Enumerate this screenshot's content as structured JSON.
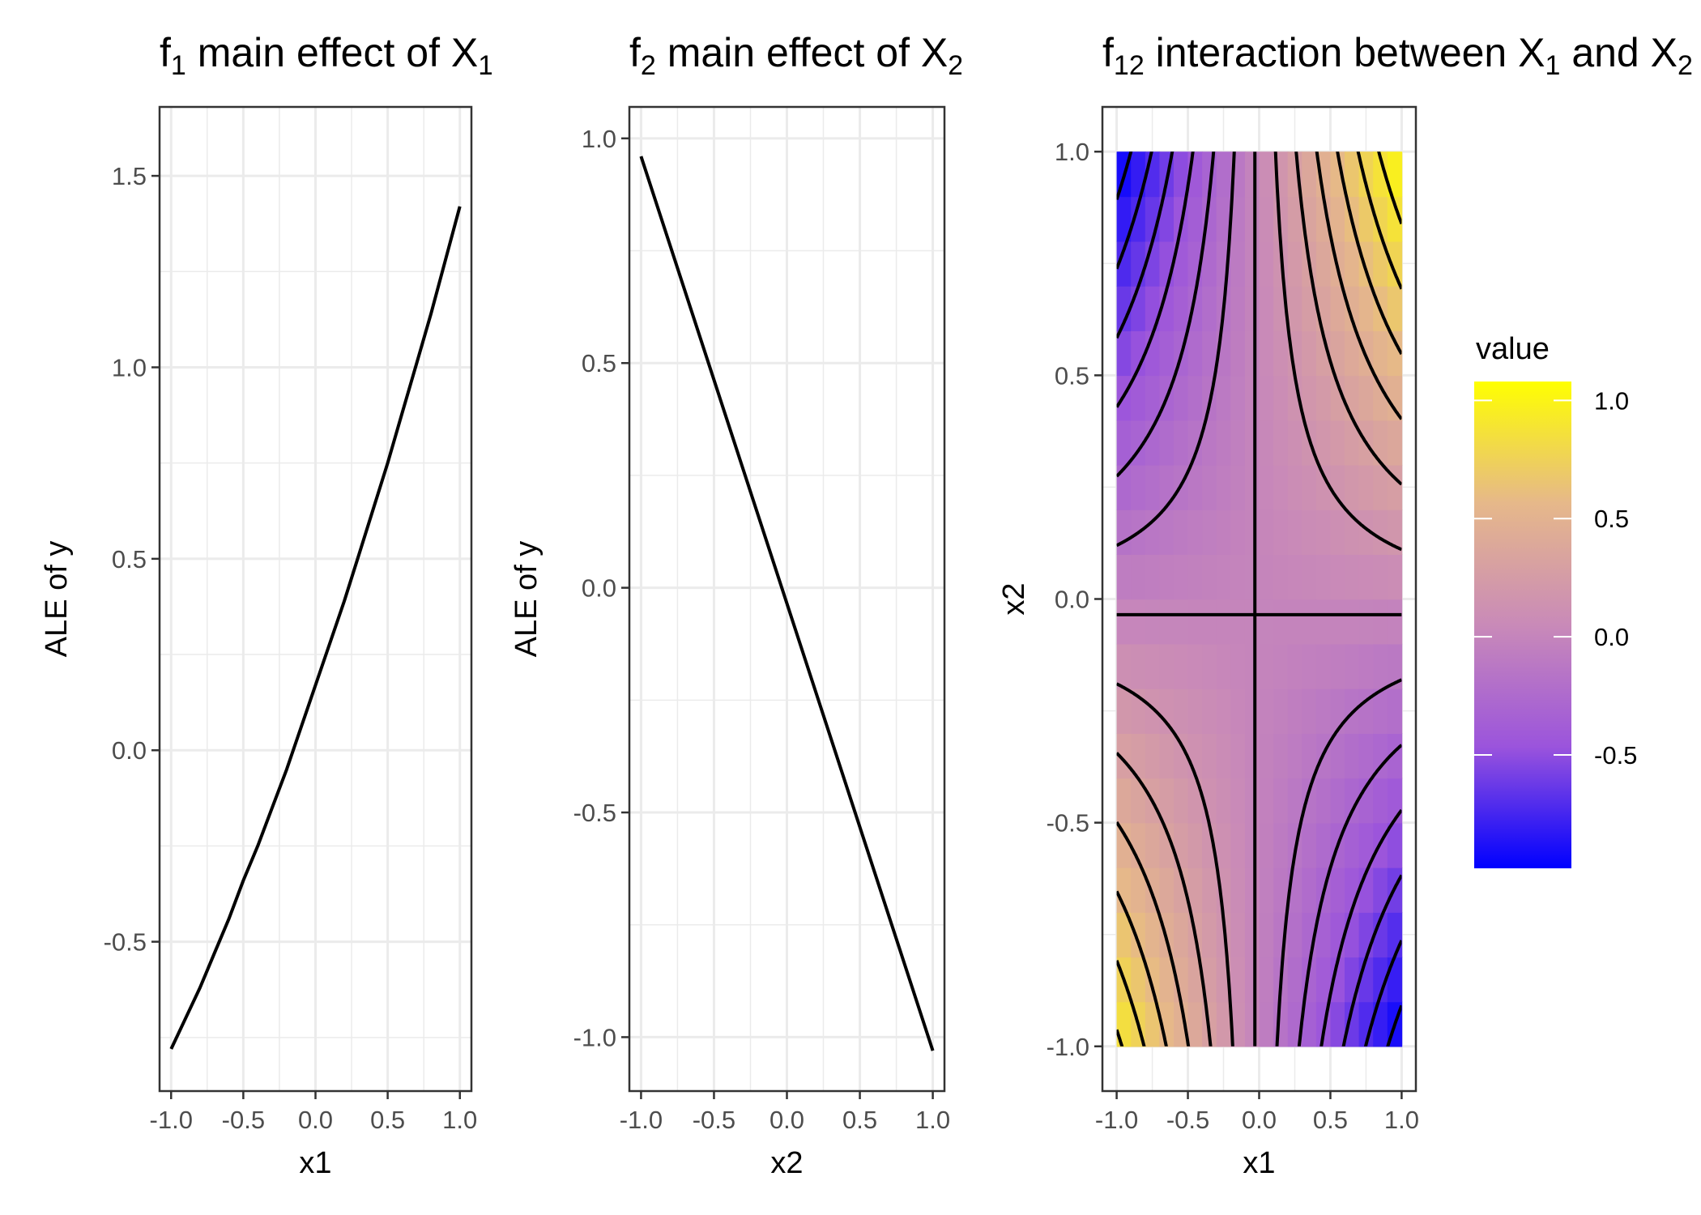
{
  "chart_data": [
    {
      "type": "line",
      "title": "f₁ main effect of X₁",
      "title_base": "f",
      "title_sub": "1",
      "title_rest": " main effect of X",
      "title_sub2": "1",
      "xlabel": "x1",
      "ylabel": "ALE of y",
      "xlim": [
        -1.08,
        1.08
      ],
      "ylim": [
        -0.89,
        1.68
      ],
      "xticks": [
        "-1.0",
        "-0.5",
        "0.0",
        "0.5",
        "1.0"
      ],
      "yticks": [
        "-0.5",
        "0.0",
        "0.5",
        "1.0",
        "1.5"
      ],
      "series": [
        {
          "x": [
            -1.0,
            -0.9,
            -0.8,
            -0.7,
            -0.6,
            -0.5,
            -0.4,
            -0.3,
            -0.2,
            -0.1,
            0.0,
            0.1,
            0.2,
            0.3,
            0.4,
            0.5,
            0.6,
            0.7,
            0.8,
            0.9,
            1.0
          ],
          "y": [
            -0.78,
            -0.7,
            -0.62,
            -0.53,
            -0.44,
            -0.34,
            -0.25,
            -0.15,
            -0.05,
            0.06,
            0.17,
            0.28,
            0.39,
            0.51,
            0.63,
            0.75,
            0.88,
            1.01,
            1.14,
            1.28,
            1.42
          ]
        }
      ]
    },
    {
      "type": "line",
      "title": "f₂ main effect of X₂",
      "title_base": "f",
      "title_sub": "2",
      "title_rest": " main effect of X",
      "title_sub2": "2",
      "xlabel": "x2",
      "ylabel": "ALE of y",
      "xlim": [
        -1.08,
        1.08
      ],
      "ylim": [
        -1.12,
        1.07
      ],
      "xticks": [
        "-1.0",
        "-0.5",
        "0.0",
        "0.5",
        "1.0"
      ],
      "yticks": [
        "-1.0",
        "-0.5",
        "0.0",
        "0.5",
        "1.0"
      ],
      "series": [
        {
          "x": [
            -1.0,
            1.0
          ],
          "y": [
            0.96,
            -1.03
          ]
        }
      ]
    },
    {
      "type": "heatmap",
      "title": "f₁₂ interaction between X₁ and X₂",
      "title_base": "f",
      "title_sub": "12",
      "title_rest": " interaction between X",
      "title_sub2": "1",
      "title_rest2": " and X",
      "title_sub3": "2",
      "xlabel": "x1",
      "ylabel": "x2",
      "xlim": [
        -1.1,
        1.1
      ],
      "ylim": [
        -1.1,
        1.1
      ],
      "xticks": [
        "-1.0",
        "-0.5",
        "0.0",
        "0.5",
        "1.0"
      ],
      "yticks": [
        "-1.0",
        "-0.5",
        "0.0",
        "0.5",
        "1.0"
      ],
      "grid_n": 20,
      "x0": -0.03,
      "y0": -0.035,
      "value_formula": "(x1 - x0) * (x2 - y0)",
      "contour_levels": [
        -0.9,
        -0.75,
        -0.6,
        -0.45,
        -0.3,
        -0.15,
        0.0,
        0.15,
        0.3,
        0.45,
        0.6,
        0.75,
        0.9
      ],
      "legend": {
        "title": "value",
        "min": -0.98,
        "max": 1.08,
        "ticks": [
          "1.0",
          "0.5",
          "0.0",
          "-0.5"
        ],
        "colors": [
          "#0000ff",
          "#9b54dc",
          "#c98ab8",
          "#e6b88a",
          "#ffff00"
        ]
      }
    }
  ]
}
